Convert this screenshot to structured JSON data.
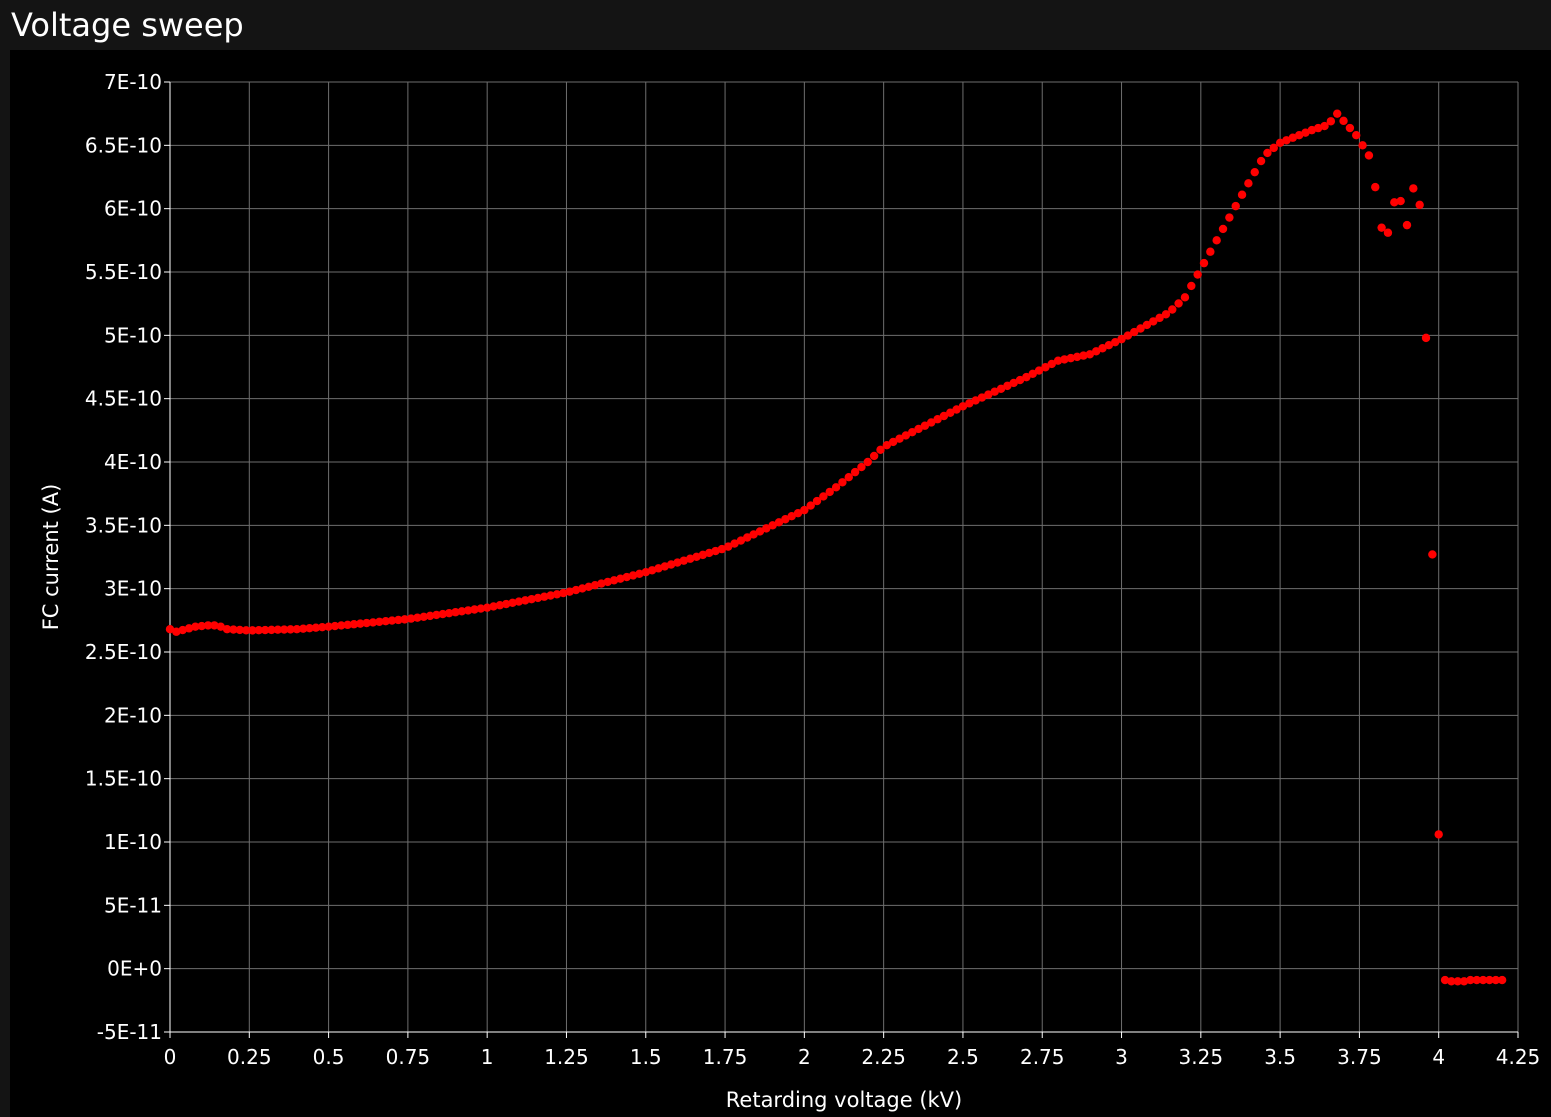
{
  "window": {
    "title": "Voltage sweep"
  },
  "colors": {
    "background": "#000000",
    "titlebar": "#141414",
    "grid": "#6e6e6e",
    "series": "#ff0000",
    "text": "#ffffff"
  },
  "chart_data": {
    "type": "scatter",
    "title": "Voltage sweep",
    "xlabel": "Retarding voltage (kV)",
    "ylabel": "FC current (A)",
    "xlim": [
      0,
      4.25
    ],
    "ylim": [
      -5e-11,
      7e-10
    ],
    "grid": true,
    "xticks": [
      0,
      0.25,
      0.5,
      0.75,
      1,
      1.25,
      1.5,
      1.75,
      2,
      2.25,
      2.5,
      2.75,
      3,
      3.25,
      3.5,
      3.75,
      4,
      4.25
    ],
    "xtick_labels": [
      "0",
      "0.25",
      "0.5",
      "0.75",
      "1",
      "1.25",
      "1.5",
      "1.75",
      "2",
      "2.25",
      "2.5",
      "2.75",
      "3",
      "3.25",
      "3.5",
      "3.75",
      "4",
      "4.25"
    ],
    "yticks": [
      -5e-11,
      0,
      5e-11,
      1e-10,
      1.5e-10,
      2e-10,
      2.5e-10,
      3e-10,
      3.5e-10,
      4e-10,
      4.5e-10,
      5e-10,
      5.5e-10,
      6e-10,
      6.5e-10,
      7e-10
    ],
    "ytick_labels": [
      "-5E-11",
      "0E+0",
      "5E-11",
      "1E-10",
      "1.5E-10",
      "2E-10",
      "2.5E-10",
      "3E-10",
      "3.5E-10",
      "4E-10",
      "4.5E-10",
      "5E-10",
      "5.5E-10",
      "6E-10",
      "6.5E-10",
      "7E-10"
    ],
    "series": [
      {
        "name": "FC current",
        "curve_knots": [
          [
            0.0,
            2.68e-10
          ],
          [
            0.02,
            2.66e-10
          ],
          [
            0.05,
            2.68e-10
          ],
          [
            0.08,
            2.7e-10
          ],
          [
            0.12,
            2.71e-10
          ],
          [
            0.15,
            2.71e-10
          ],
          [
            0.18,
            2.68e-10
          ],
          [
            0.25,
            2.67e-10
          ],
          [
            0.4,
            2.68e-10
          ],
          [
            0.5,
            2.7e-10
          ],
          [
            0.75,
            2.76e-10
          ],
          [
            1.0,
            2.85e-10
          ],
          [
            1.25,
            2.97e-10
          ],
          [
            1.5,
            3.13e-10
          ],
          [
            1.75,
            3.32e-10
          ],
          [
            2.0,
            3.62e-10
          ],
          [
            2.1,
            3.8e-10
          ],
          [
            2.2,
            4e-10
          ],
          [
            2.25,
            4.12e-10
          ],
          [
            2.5,
            4.44e-10
          ],
          [
            2.7,
            4.67e-10
          ],
          [
            2.8,
            4.8e-10
          ],
          [
            2.9,
            4.85e-10
          ],
          [
            3.0,
            4.97e-10
          ],
          [
            3.15,
            5.18e-10
          ],
          [
            3.2,
            5.3e-10
          ],
          [
            3.3,
            5.75e-10
          ],
          [
            3.4,
            6.2e-10
          ],
          [
            3.45,
            6.42e-10
          ],
          [
            3.5,
            6.52e-10
          ],
          [
            3.6,
            6.62e-10
          ],
          [
            3.65,
            6.66e-10
          ],
          [
            3.68,
            6.75e-10
          ],
          [
            3.74,
            6.58e-10
          ],
          [
            3.76,
            6.5e-10
          ]
        ],
        "curve_step": 0.02,
        "extra_points": [
          [
            3.78,
            6.42e-10
          ],
          [
            3.8,
            6.17e-10
          ],
          [
            3.82,
            5.85e-10
          ],
          [
            3.84,
            5.81e-10
          ],
          [
            3.86,
            6.05e-10
          ],
          [
            3.88,
            6.06e-10
          ],
          [
            3.9,
            5.87e-10
          ],
          [
            3.92,
            6.16e-10
          ],
          [
            3.94,
            6.03e-10
          ],
          [
            3.96,
            4.98e-10
          ],
          [
            3.98,
            3.27e-10
          ],
          [
            4.0,
            1.06e-10
          ],
          [
            4.02,
            -9e-12
          ],
          [
            4.04,
            -1e-11
          ],
          [
            4.06,
            -1e-11
          ],
          [
            4.08,
            -1e-11
          ],
          [
            4.1,
            -9e-12
          ],
          [
            4.12,
            -9e-12
          ],
          [
            4.14,
            -9e-12
          ],
          [
            4.16,
            -9e-12
          ],
          [
            4.18,
            -9e-12
          ],
          [
            4.2,
            -9e-12
          ]
        ]
      }
    ]
  }
}
